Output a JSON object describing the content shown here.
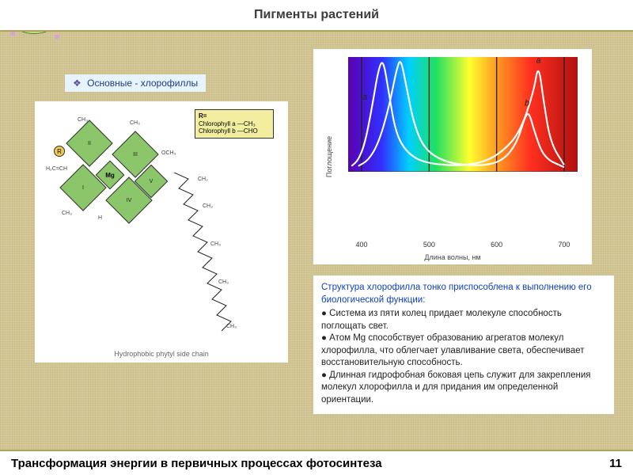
{
  "title": "Пигменты растений",
  "subheading": "Основные - хлорофиллы",
  "footer": {
    "text": "Трансформация энергии в первичных процессах фотосинтеза",
    "page": "11"
  },
  "molecule": {
    "caption": "Hydrophobic phytyl side chain",
    "center_label": "Mg",
    "ring_labels": [
      "I",
      "II",
      "III",
      "IV",
      "V"
    ],
    "r_label": "R",
    "side_labels": [
      "CH₃",
      "CH₃",
      "CH₂",
      "CH₃",
      "H",
      "H",
      "H",
      "OCH₃",
      "H₂C=CH"
    ],
    "legend": {
      "title": "R=",
      "rows": [
        "Chlorophyll a —CH₃",
        "Chlorophyll b —CHO"
      ]
    },
    "colors": {
      "ring_fill": "#8bc76a",
      "r_fill": "#f2c94c",
      "legend_bg": "#f3eda0"
    }
  },
  "spectrum": {
    "type": "line",
    "xlabel": "Длина волны, нм",
    "ylabel": "Поглощение",
    "xlim": [
      380,
      720
    ],
    "xticks": [
      400,
      500,
      600,
      700
    ],
    "gradient_stops": [
      {
        "nm": 380,
        "color": "#5a00b0"
      },
      {
        "nm": 430,
        "color": "#3030ff"
      },
      {
        "nm": 470,
        "color": "#00d0ff"
      },
      {
        "nm": 510,
        "color": "#20e060"
      },
      {
        "nm": 560,
        "color": "#ffff30"
      },
      {
        "nm": 600,
        "color": "#ff9a20"
      },
      {
        "nm": 650,
        "color": "#ff3020"
      },
      {
        "nm": 720,
        "color": "#b01010"
      }
    ],
    "grid_nm": [
      400,
      500,
      600,
      700
    ],
    "series": [
      {
        "name": "a",
        "label_positions": [
          [
            405,
            0.6
          ],
          [
            662,
            0.92
          ]
        ],
        "points": [
          [
            385,
            0.05
          ],
          [
            395,
            0.1
          ],
          [
            405,
            0.25
          ],
          [
            415,
            0.55
          ],
          [
            425,
            0.9
          ],
          [
            432,
            0.98
          ],
          [
            440,
            0.7
          ],
          [
            450,
            0.35
          ],
          [
            465,
            0.18
          ],
          [
            490,
            0.08
          ],
          [
            540,
            0.05
          ],
          [
            580,
            0.08
          ],
          [
            610,
            0.18
          ],
          [
            635,
            0.35
          ],
          [
            655,
            0.7
          ],
          [
            662,
            0.95
          ],
          [
            670,
            0.6
          ],
          [
            680,
            0.25
          ],
          [
            700,
            0.06
          ]
        ]
      },
      {
        "name": "b",
        "label_positions": [
          [
            455,
            0.99
          ],
          [
            645,
            0.55
          ]
        ],
        "points": [
          [
            395,
            0.05
          ],
          [
            410,
            0.1
          ],
          [
            425,
            0.25
          ],
          [
            440,
            0.55
          ],
          [
            452,
            0.9
          ],
          [
            458,
            0.99
          ],
          [
            466,
            0.75
          ],
          [
            478,
            0.4
          ],
          [
            495,
            0.18
          ],
          [
            530,
            0.07
          ],
          [
            580,
            0.05
          ],
          [
            610,
            0.1
          ],
          [
            630,
            0.25
          ],
          [
            642,
            0.48
          ],
          [
            648,
            0.52
          ],
          [
            656,
            0.35
          ],
          [
            670,
            0.12
          ],
          [
            700,
            0.04
          ]
        ]
      }
    ],
    "line_color": "#ffffff",
    "line_width": 2.2,
    "label_color": "#222222",
    "label_fontsize": 11,
    "background_color": "#ffffff",
    "grid_color": "#222222",
    "grid_width": 1.4
  },
  "text_block": {
    "lead": "Структура хлорофилла тонко приспособлена к выполнению его биологической функции:",
    "bullets": [
      "Система из пяти колец придает молекуле способность поглощать свет.",
      "Атом Mg способствует образованию агрегатов молекул хлорофилла, что облегчает улавливание света, обеспечивает восстановительную способность.",
      "Длинная гидрофобная боковая цепь служит для закрепления молекул хлорофилла и для придания им определенной ориентации."
    ]
  },
  "colors": {
    "page_bg": "#d4c896",
    "panel_bg": "#ffffff",
    "accent_border": "#b0a060",
    "lead_text": "#1040c0",
    "badge_bg": "#e8f4fb"
  }
}
